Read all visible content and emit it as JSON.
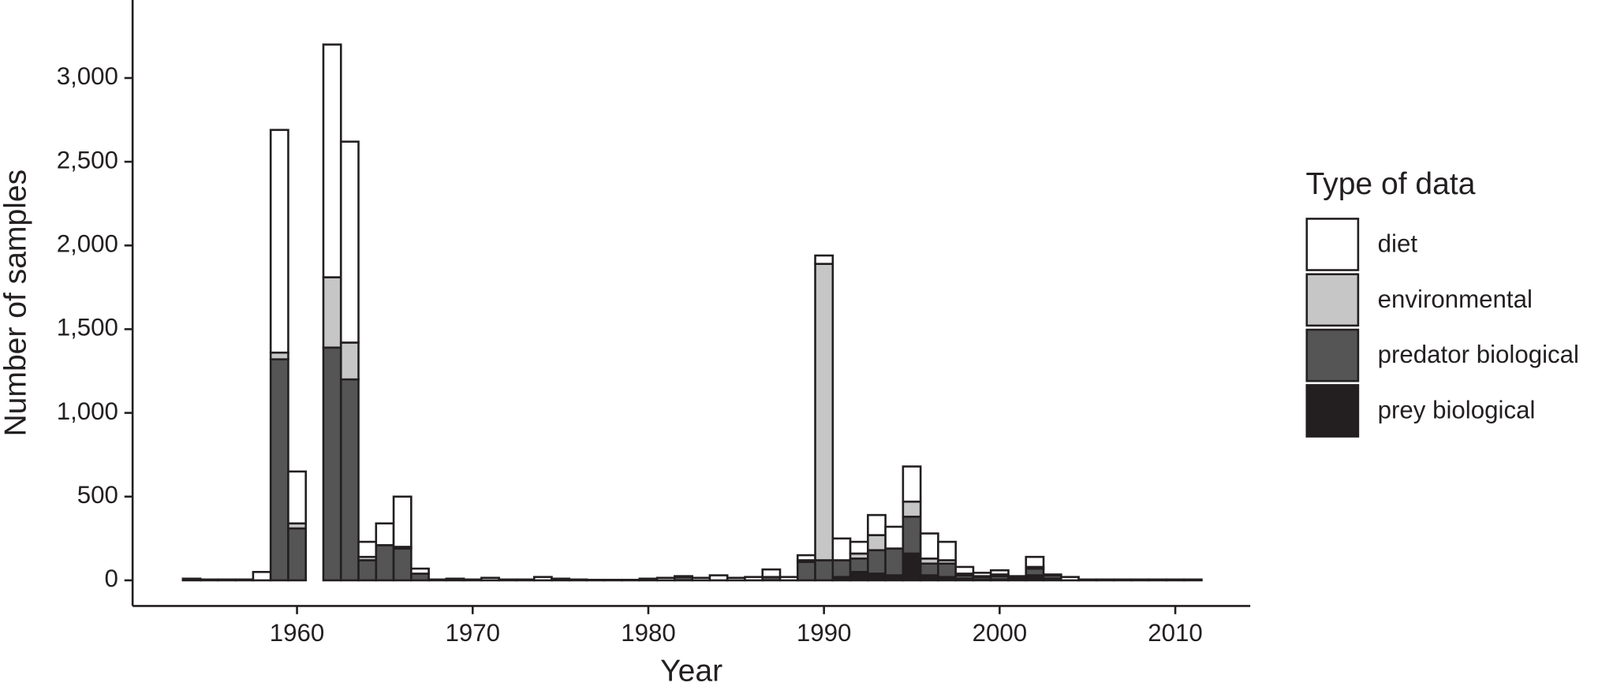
{
  "chart_data": {
    "type": "bar",
    "stacked": true,
    "x_label": "Year",
    "y_label": "Number of samples",
    "legend_title": "Type of data",
    "legend_position": "right",
    "x": [
      1954,
      1955,
      1956,
      1957,
      1958,
      1959,
      1960,
      1961,
      1962,
      1963,
      1964,
      1965,
      1966,
      1967,
      1968,
      1969,
      1970,
      1971,
      1972,
      1973,
      1974,
      1975,
      1976,
      1977,
      1978,
      1979,
      1980,
      1981,
      1982,
      1983,
      1984,
      1985,
      1986,
      1987,
      1988,
      1989,
      1990,
      1991,
      1992,
      1993,
      1994,
      1995,
      1996,
      1997,
      1998,
      1999,
      2000,
      2001,
      2002,
      2003,
      2004,
      2005,
      2006,
      2007,
      2008,
      2009,
      2010,
      2011
    ],
    "series": [
      {
        "name": "diet",
        "color": "#ffffff",
        "values": [
          10,
          5,
          5,
          5,
          50,
          1330,
          310,
          0,
          1390,
          1200,
          90,
          130,
          300,
          30,
          5,
          10,
          5,
          15,
          5,
          5,
          20,
          10,
          5,
          3,
          3,
          3,
          10,
          15,
          5,
          15,
          30,
          15,
          20,
          45,
          20,
          30,
          50,
          130,
          70,
          120,
          130,
          210,
          150,
          110,
          40,
          20,
          25,
          10,
          60,
          5,
          20,
          5,
          5,
          5,
          5,
          5,
          5,
          5
        ]
      },
      {
        "name": "environmental",
        "color": "#c6c6c6",
        "values": [
          0,
          0,
          0,
          0,
          0,
          40,
          30,
          0,
          420,
          220,
          20,
          0,
          10,
          0,
          0,
          0,
          0,
          0,
          0,
          0,
          0,
          0,
          0,
          0,
          0,
          0,
          0,
          0,
          0,
          0,
          0,
          0,
          0,
          0,
          0,
          10,
          1770,
          0,
          30,
          90,
          0,
          90,
          30,
          20,
          10,
          5,
          10,
          0,
          10,
          0,
          0,
          0,
          0,
          0,
          0,
          0,
          0,
          0
        ]
      },
      {
        "name": "predator biological",
        "color": "#555555",
        "values": [
          0,
          0,
          0,
          0,
          0,
          1320,
          310,
          0,
          1390,
          1200,
          120,
          210,
          190,
          40,
          0,
          0,
          0,
          0,
          0,
          0,
          0,
          0,
          0,
          0,
          0,
          0,
          0,
          0,
          20,
          0,
          0,
          0,
          0,
          20,
          0,
          110,
          120,
          100,
          80,
          140,
          160,
          220,
          70,
          80,
          20,
          15,
          20,
          10,
          40,
          20,
          0,
          0,
          0,
          0,
          0,
          0,
          0,
          0
        ]
      },
      {
        "name": "prey biological",
        "color": "#231f20",
        "values": [
          0,
          0,
          0,
          0,
          0,
          0,
          0,
          0,
          0,
          0,
          0,
          0,
          0,
          0,
          0,
          0,
          0,
          0,
          0,
          0,
          0,
          0,
          0,
          0,
          0,
          0,
          0,
          0,
          0,
          0,
          0,
          0,
          0,
          0,
          0,
          0,
          0,
          20,
          50,
          40,
          30,
          160,
          30,
          20,
          10,
          5,
          5,
          5,
          30,
          10,
          0,
          0,
          0,
          0,
          0,
          0,
          0,
          0
        ]
      }
    ],
    "xlim": [
      1950.64,
      2014.27
    ],
    "ylim": [
      -153,
      3466
    ],
    "xticks": [
      1960,
      1970,
      1980,
      1990,
      2000,
      2010
    ],
    "yticks": [
      0,
      500,
      {
        "value": 1000,
        "label": "1,000"
      },
      {
        "value": 1500,
        "label": "1,500"
      },
      {
        "value": 2000,
        "label": "2,000"
      },
      {
        "value": 2500,
        "label": "2,500"
      },
      {
        "value": 3000,
        "label": "3,000"
      }
    ],
    "grid": false
  }
}
